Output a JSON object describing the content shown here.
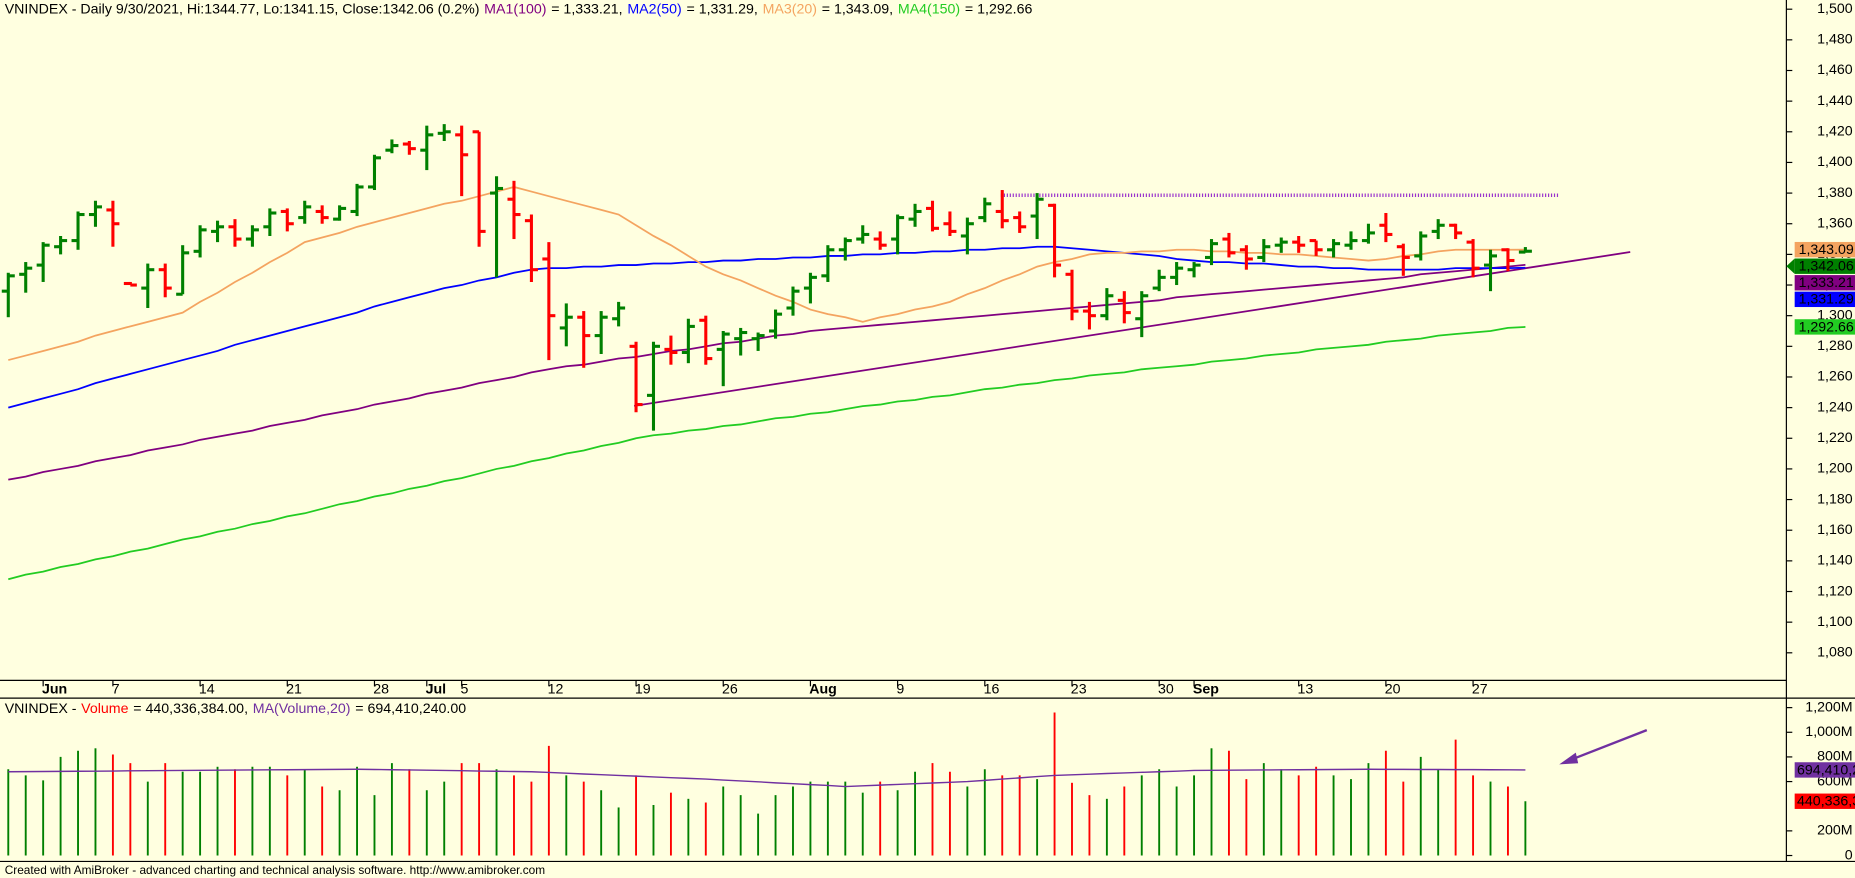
{
  "chart_data": [
    {
      "type": "ohlc",
      "title": "VNINDEX - Daily 9/30/2021, Hi:1344.77, Lo:1341.15, Close:1342.06 (0.2%)",
      "categories": [
        null,
        null,
        "Jun",
        null,
        null,
        null,
        "7",
        null,
        null,
        null,
        null,
        "14",
        null,
        null,
        null,
        null,
        "21",
        null,
        null,
        null,
        null,
        "28",
        null,
        null,
        "Jul",
        null,
        "5",
        null,
        null,
        null,
        null,
        "12",
        null,
        null,
        null,
        null,
        "19",
        null,
        null,
        null,
        null,
        "26",
        null,
        null,
        null,
        null,
        "Aug",
        null,
        null,
        null,
        null,
        "9",
        null,
        null,
        null,
        null,
        "16",
        null,
        null,
        null,
        null,
        "23",
        null,
        null,
        null,
        null,
        "30",
        null,
        "Sep",
        null,
        null,
        null,
        null,
        null,
        "13",
        null,
        null,
        null,
        null,
        "20",
        null,
        null,
        null,
        null,
        "27",
        null,
        null,
        null
      ],
      "open": [
        1316,
        1327,
        1333,
        1345,
        1349,
        1366,
        1369,
        1321,
        1318,
        1330,
        1314,
        1342,
        1355,
        1358,
        1350,
        1358,
        1368,
        1364,
        1368,
        1363,
        1368,
        1384,
        1408,
        1412,
        1408,
        1419,
        1418,
        1420,
        1380,
        1376,
        1362,
        1337,
        1292,
        1299,
        1287,
        1298,
        1280,
        1248,
        1278,
        1276,
        1297,
        1278,
        1285,
        1285,
        1290,
        1305,
        1318,
        1326,
        1343,
        1350,
        1350,
        1350,
        1363,
        1370,
        1360,
        1352,
        1364,
        1368,
        1364,
        1365,
        1372,
        1327,
        1303,
        1300,
        1310,
        1298,
        1318,
        1325,
        1330,
        1338,
        1350,
        1343,
        1338,
        1346,
        1348,
        1349,
        1343,
        1346,
        1349,
        1359,
        1345,
        1339,
        1355,
        1359,
        1348,
        1333,
        1343,
        1341.5
      ],
      "high": [
        1328,
        1335,
        1348,
        1352,
        1368,
        1375,
        1375,
        1322,
        1334,
        1334,
        1346,
        1359,
        1362,
        1363,
        1359,
        1370,
        1370,
        1375,
        1372,
        1372,
        1386,
        1405,
        1415,
        1414,
        1424,
        1425,
        1424,
        1420,
        1391,
        1388,
        1366,
        1348,
        1308,
        1303,
        1303,
        1309,
        1283,
        1283,
        1287,
        1298,
        1300,
        1290,
        1292,
        1289,
        1304,
        1319,
        1328,
        1346,
        1351,
        1359,
        1355,
        1366,
        1373,
        1375,
        1368,
        1364,
        1377,
        1382,
        1368,
        1380,
        1373,
        1330,
        1309,
        1318,
        1316,
        1316,
        1330,
        1335,
        1335,
        1350,
        1354,
        1346,
        1350,
        1351,
        1352,
        1349,
        1350,
        1355,
        1360,
        1367,
        1347,
        1355,
        1363,
        1360,
        1350,
        1343,
        1344,
        1344.77
      ],
      "low": [
        1299,
        1315,
        1322,
        1340,
        1343,
        1358,
        1345,
        1320,
        1305,
        1312,
        1314,
        1338,
        1348,
        1345,
        1345,
        1352,
        1355,
        1360,
        1360,
        1362,
        1365,
        1382,
        1406,
        1405,
        1395,
        1414,
        1378,
        1345,
        1325,
        1350,
        1322,
        1271,
        1280,
        1266,
        1275,
        1293,
        1237,
        1225,
        1268,
        1269,
        1268,
        1254,
        1274,
        1277,
        1285,
        1300,
        1308,
        1322,
        1336,
        1347,
        1343,
        1340,
        1358,
        1355,
        1352,
        1340,
        1361,
        1357,
        1354,
        1350,
        1325,
        1297,
        1291,
        1297,
        1295,
        1286,
        1316,
        1320,
        1325,
        1333,
        1338,
        1330,
        1335,
        1341,
        1341,
        1339,
        1338,
        1343,
        1347,
        1348,
        1326,
        1336,
        1350,
        1350,
        1325,
        1316,
        1329,
        1341.15
      ],
      "close": [
        1326,
        1331,
        1346,
        1349,
        1366,
        1371,
        1360,
        1320,
        1330,
        1318,
        1341,
        1356,
        1358,
        1350,
        1356,
        1367,
        1360,
        1371,
        1364,
        1370,
        1384,
        1403,
        1411,
        1409,
        1418,
        1420,
        1405,
        1355,
        1383,
        1366,
        1330,
        1300,
        1299,
        1287,
        1299,
        1305,
        1242,
        1280,
        1276,
        1293,
        1272,
        1288,
        1289,
        1287,
        1301,
        1316,
        1325,
        1343,
        1349,
        1353,
        1346,
        1364,
        1368,
        1357,
        1355,
        1360,
        1373,
        1362,
        1358,
        1376,
        1333,
        1303,
        1300,
        1313,
        1302,
        1313,
        1325,
        1331,
        1333,
        1347,
        1341,
        1337,
        1345,
        1348,
        1346,
        1343,
        1347,
        1349,
        1354,
        1353,
        1338,
        1352,
        1359,
        1354,
        1331,
        1339,
        1336,
        1342.06
      ],
      "up_color": "#008000",
      "down_color": "#ff0000",
      "close_tag": "1,342.06",
      "series": [
        {
          "name": "MA1(100)",
          "legend": "= 1,333.21,",
          "tag": "1,333.21",
          "color": "#800080",
          "values": [
            1193,
            1195,
            1198,
            1200,
            1202,
            1205,
            1207,
            1209,
            1212,
            1214,
            1216,
            1219,
            1221,
            1223,
            1225,
            1228,
            1230,
            1232,
            1235,
            1237,
            1239,
            1242,
            1244,
            1246,
            1249,
            1251,
            1253,
            1256,
            1258,
            1260,
            1263,
            1265,
            1267,
            1268,
            1270,
            1272,
            1273,
            1275,
            1277,
            1278,
            1280,
            1282,
            1283,
            1285,
            1287,
            1288,
            1290,
            1291,
            1292,
            1293,
            1294,
            1295,
            1296,
            1297,
            1298,
            1299,
            1300,
            1301,
            1302,
            1303,
            1304,
            1305,
            1306,
            1307,
            1308,
            1309,
            1310,
            1312,
            1313,
            1314,
            1315,
            1316,
            1317,
            1318,
            1319,
            1320,
            1321,
            1322,
            1323,
            1324,
            1325,
            1327,
            1328,
            1329,
            1330,
            1331,
            1332,
            1333.21
          ]
        },
        {
          "name": "MA2(50)",
          "legend": "= 1,331.29,",
          "tag": "1,331.29",
          "color": "#0000ff",
          "values": [
            1240,
            1243,
            1246,
            1249,
            1252,
            1256,
            1259,
            1262,
            1265,
            1268,
            1271,
            1274,
            1277,
            1281,
            1284,
            1287,
            1290,
            1293,
            1296,
            1299,
            1302,
            1306,
            1309,
            1312,
            1315,
            1318,
            1320,
            1323,
            1325,
            1328,
            1330,
            1331,
            1331,
            1332,
            1332,
            1333,
            1333,
            1334,
            1334,
            1335,
            1335,
            1336,
            1336,
            1337,
            1337,
            1338,
            1338,
            1339,
            1339,
            1340,
            1340,
            1341,
            1341,
            1342,
            1342,
            1343,
            1343,
            1344,
            1344,
            1345,
            1345,
            1344,
            1343,
            1342,
            1341,
            1340,
            1339,
            1337,
            1336,
            1335,
            1335,
            1334,
            1334,
            1333,
            1332,
            1332,
            1331,
            1331,
            1330,
            1330,
            1330,
            1330,
            1330,
            1331,
            1331,
            1331,
            1331,
            1331.29
          ]
        },
        {
          "name": "MA3(20)",
          "legend": "= 1,343.09,",
          "tag": "1,343.09",
          "color": "#f4a460",
          "values": [
            1271,
            1274,
            1277,
            1280,
            1283,
            1287,
            1290,
            1293,
            1296,
            1299,
            1302,
            1309,
            1315,
            1322,
            1328,
            1335,
            1341,
            1348,
            1351,
            1354,
            1358,
            1361,
            1364,
            1367,
            1370,
            1373,
            1375,
            1378,
            1381,
            1384,
            1381,
            1378,
            1375,
            1372,
            1369,
            1366,
            1359,
            1352,
            1346,
            1339,
            1332,
            1327,
            1323,
            1318,
            1313,
            1309,
            1304,
            1301,
            1299,
            1296,
            1299,
            1301,
            1304,
            1306,
            1309,
            1314,
            1318,
            1323,
            1327,
            1332,
            1335,
            1337,
            1340,
            1341,
            1341,
            1342,
            1342,
            1343,
            1343,
            1342,
            1342,
            1341,
            1341,
            1340,
            1340,
            1339,
            1338,
            1337,
            1336,
            1337,
            1339,
            1340,
            1342,
            1343,
            1343,
            1343,
            1343,
            1343.09
          ]
        },
        {
          "name": "MA4(150)",
          "legend": "= 1,292.66",
          "tag": "1,292.66",
          "color": "#22cc22",
          "values": [
            1128,
            1131,
            1133,
            1136,
            1138,
            1141,
            1143,
            1146,
            1148,
            1151,
            1154,
            1156,
            1159,
            1161,
            1164,
            1166,
            1169,
            1171,
            1174,
            1177,
            1179,
            1182,
            1184,
            1187,
            1189,
            1192,
            1194,
            1197,
            1200,
            1202,
            1205,
            1207,
            1210,
            1212,
            1215,
            1217,
            1220,
            1222,
            1223,
            1225,
            1226,
            1228,
            1229,
            1231,
            1233,
            1234,
            1236,
            1237,
            1239,
            1241,
            1242,
            1244,
            1245,
            1247,
            1248,
            1250,
            1252,
            1253,
            1255,
            1256,
            1258,
            1259,
            1261,
            1262,
            1263,
            1265,
            1266,
            1267,
            1268,
            1270,
            1271,
            1272,
            1274,
            1275,
            1276,
            1278,
            1279,
            1280,
            1281,
            1283,
            1284,
            1285,
            1287,
            1288,
            1289,
            1290,
            1292,
            1292.66
          ]
        }
      ],
      "ylim": [
        1062,
        1506
      ],
      "yticks": [
        {
          "value": 1080,
          "label": "1,080"
        },
        {
          "value": 1100,
          "label": "1,100"
        },
        {
          "value": 1120,
          "label": "1,120"
        },
        {
          "value": 1140,
          "label": "1,140"
        },
        {
          "value": 1160,
          "label": "1,160"
        },
        {
          "value": 1180,
          "label": "1,180"
        },
        {
          "value": 1200,
          "label": "1,200"
        },
        {
          "value": 1220,
          "label": "1,220"
        },
        {
          "value": 1240,
          "label": "1,240"
        },
        {
          "value": 1260,
          "label": "1,260"
        },
        {
          "value": 1280,
          "label": "1,280"
        },
        {
          "value": 1300,
          "label": "1,300"
        },
        {
          "value": 1320,
          "label": "1,320"
        },
        {
          "value": 1340,
          "label": "1,340"
        },
        {
          "value": 1360,
          "label": "1,360"
        },
        {
          "value": 1380,
          "label": "1,380"
        },
        {
          "value": 1400,
          "label": "1,400"
        },
        {
          "value": 1420,
          "label": "1,420"
        },
        {
          "value": 1440,
          "label": "1,440"
        },
        {
          "value": 1460,
          "label": "1,460"
        },
        {
          "value": 1480,
          "label": "1,480"
        },
        {
          "value": 1500,
          "label": "1,500"
        }
      ]
    },
    {
      "type": "bar",
      "title": "VNINDEX -",
      "series": [
        {
          "name": "Volume",
          "legend": "= 440,336,384.00,",
          "tag": "440,336,3",
          "color": "#ff0000",
          "values": [
            700,
            650,
            610,
            800,
            850,
            870,
            820,
            750,
            600,
            750,
            680,
            680,
            720,
            700,
            720,
            720,
            650,
            700,
            560,
            530,
            720,
            490,
            750,
            700,
            530,
            600,
            750,
            750,
            700,
            650,
            600,
            890,
            650,
            600,
            530,
            390,
            650,
            410,
            510,
            460,
            430,
            560,
            490,
            340,
            490,
            560,
            600,
            600,
            600,
            510,
            600,
            530,
            680,
            750,
            680,
            560,
            700,
            650,
            650,
            620,
            1160,
            590,
            490,
            460,
            560,
            650,
            700,
            560,
            650,
            870,
            850,
            620,
            750,
            700,
            650,
            720,
            650,
            620,
            750,
            850,
            600,
            800,
            700,
            940,
            650,
            600,
            560,
            440.336384
          ]
        },
        {
          "name": "MA(Volume,20)",
          "legend": "= 694,410,240.00",
          "tag": "694,410,2",
          "color": "#7030a0",
          "values": [
            680,
            681,
            682,
            683,
            684,
            685,
            686,
            687,
            688,
            689,
            690,
            691,
            692,
            693,
            694,
            695,
            696,
            697,
            698,
            699,
            700,
            698,
            696,
            694,
            692,
            690,
            688,
            686,
            684,
            682,
            680,
            674,
            668,
            662,
            656,
            650,
            644,
            638,
            632,
            626,
            620,
            613,
            605,
            598,
            590,
            583,
            575,
            568,
            560,
            566,
            571,
            577,
            583,
            589,
            594,
            600,
            610,
            620,
            630,
            640,
            650,
            655,
            660,
            665,
            670,
            675,
            680,
            685,
            690,
            691,
            692,
            693,
            694,
            695,
            696,
            697,
            698,
            699,
            700,
            699,
            699,
            698,
            698,
            697,
            697,
            696,
            695,
            694.41
          ]
        }
      ],
      "ylim": [
        0,
        1277
      ],
      "yticks": [
        {
          "value": 0,
          "label": "0"
        },
        {
          "value": 200,
          "label": "200M"
        },
        {
          "value": 600,
          "label": "600M"
        },
        {
          "value": 800,
          "label": "800M"
        },
        {
          "value": 1000,
          "label": "1,000M"
        },
        {
          "value": 1200,
          "label": "1,200M"
        }
      ]
    }
  ],
  "footer": "Created with AmiBroker - advanced charting and technical analysis software. http://www.amibroker.com"
}
